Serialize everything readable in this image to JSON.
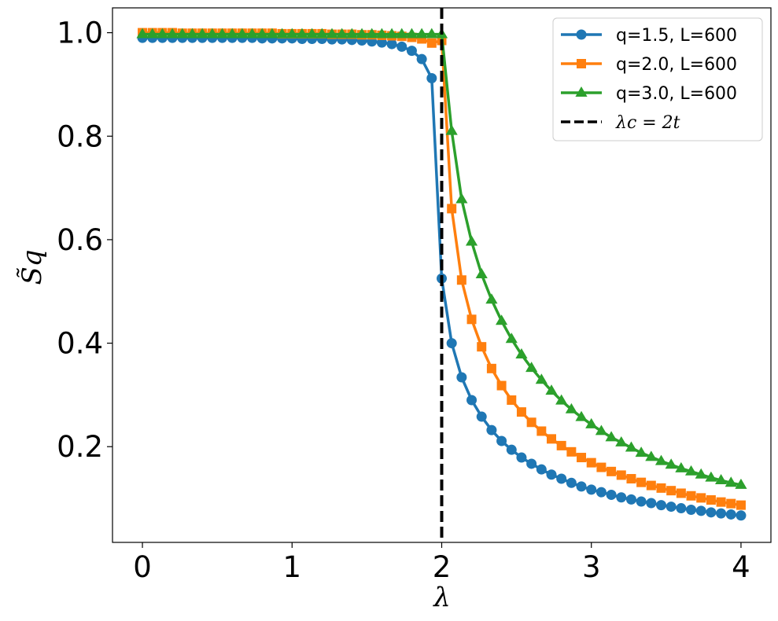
{
  "chart_data": {
    "type": "line",
    "xlabel": "λ",
    "ylabel": "S̃q",
    "xlim": [
      -0.2,
      4.2
    ],
    "ylim": [
      0.015,
      1.048
    ],
    "xticks": [
      0,
      1,
      2,
      3,
      4
    ],
    "xtick_labels": [
      "0",
      "1",
      "2",
      "3",
      "4"
    ],
    "yticks": [
      0.2,
      0.4,
      0.6,
      0.8,
      1.0
    ],
    "ytick_labels": [
      "0.2",
      "0.4",
      "0.6",
      "0.8",
      "1.0"
    ],
    "grid": false,
    "legend_position": "top-right",
    "vline": {
      "x": 2,
      "label": "λc = 2t",
      "color": "#000000",
      "style": "dashed"
    },
    "x": [
      0.0,
      0.0667,
      0.1333,
      0.2,
      0.2667,
      0.3333,
      0.4,
      0.4667,
      0.5333,
      0.6,
      0.6667,
      0.7333,
      0.8,
      0.8667,
      0.9333,
      1.0,
      1.0667,
      1.1333,
      1.2,
      1.2667,
      1.3333,
      1.4,
      1.4667,
      1.5333,
      1.6,
      1.6667,
      1.7333,
      1.8,
      1.8667,
      1.9333,
      2.0,
      2.0667,
      2.1333,
      2.2,
      2.2667,
      2.3333,
      2.4,
      2.4667,
      2.5333,
      2.6,
      2.6667,
      2.7333,
      2.8,
      2.8667,
      2.9333,
      3.0,
      3.0667,
      3.1333,
      3.2,
      3.2667,
      3.3333,
      3.4,
      3.4667,
      3.5333,
      3.6,
      3.6667,
      3.7333,
      3.8,
      3.8667,
      3.9333,
      4.0
    ],
    "series": [
      {
        "name": "q=1.5, L=600",
        "color": "#1f77b4",
        "marker": "circle",
        "values": [
          0.99,
          0.99,
          0.99,
          0.99,
          0.99,
          0.99,
          0.99,
          0.99,
          0.99,
          0.99,
          0.99,
          0.99,
          0.989,
          0.989,
          0.989,
          0.989,
          0.988,
          0.988,
          0.988,
          0.987,
          0.987,
          0.986,
          0.985,
          0.983,
          0.981,
          0.978,
          0.973,
          0.965,
          0.949,
          0.912,
          0.525,
          0.4,
          0.334,
          0.29,
          0.258,
          0.232,
          0.211,
          0.194,
          0.179,
          0.167,
          0.156,
          0.146,
          0.138,
          0.13,
          0.123,
          0.117,
          0.112,
          0.107,
          0.102,
          0.098,
          0.094,
          0.091,
          0.087,
          0.084,
          0.081,
          0.078,
          0.076,
          0.073,
          0.071,
          0.069,
          0.067
        ]
      },
      {
        "name": "q=2.0, L=600",
        "color": "#ff7f0e",
        "marker": "square",
        "values": [
          1.0,
          1.0,
          1.0,
          1.0,
          0.999,
          0.999,
          0.999,
          0.999,
          0.999,
          0.999,
          0.999,
          0.999,
          0.999,
          0.999,
          0.998,
          0.998,
          0.998,
          0.998,
          0.998,
          0.997,
          0.997,
          0.997,
          0.996,
          0.996,
          0.995,
          0.994,
          0.993,
          0.991,
          0.988,
          0.98,
          0.985,
          0.66,
          0.522,
          0.446,
          0.393,
          0.351,
          0.318,
          0.29,
          0.267,
          0.247,
          0.23,
          0.215,
          0.202,
          0.19,
          0.179,
          0.169,
          0.16,
          0.152,
          0.145,
          0.138,
          0.131,
          0.125,
          0.12,
          0.115,
          0.11,
          0.105,
          0.101,
          0.097,
          0.093,
          0.09,
          0.087
        ]
      },
      {
        "name": "q=3.0, L=600",
        "color": "#2ca02c",
        "marker": "triangle",
        "values": [
          0.997,
          0.997,
          0.997,
          0.997,
          0.997,
          0.997,
          0.997,
          0.997,
          0.997,
          0.997,
          0.997,
          0.997,
          0.997,
          0.997,
          0.997,
          0.997,
          0.997,
          0.997,
          0.997,
          0.997,
          0.997,
          0.997,
          0.997,
          0.997,
          0.997,
          0.997,
          0.997,
          0.997,
          0.997,
          0.997,
          0.997,
          0.81,
          0.678,
          0.596,
          0.533,
          0.484,
          0.443,
          0.408,
          0.378,
          0.352,
          0.329,
          0.308,
          0.289,
          0.272,
          0.257,
          0.243,
          0.23,
          0.218,
          0.208,
          0.198,
          0.188,
          0.18,
          0.172,
          0.165,
          0.158,
          0.152,
          0.146,
          0.14,
          0.135,
          0.13,
          0.126
        ]
      }
    ]
  }
}
